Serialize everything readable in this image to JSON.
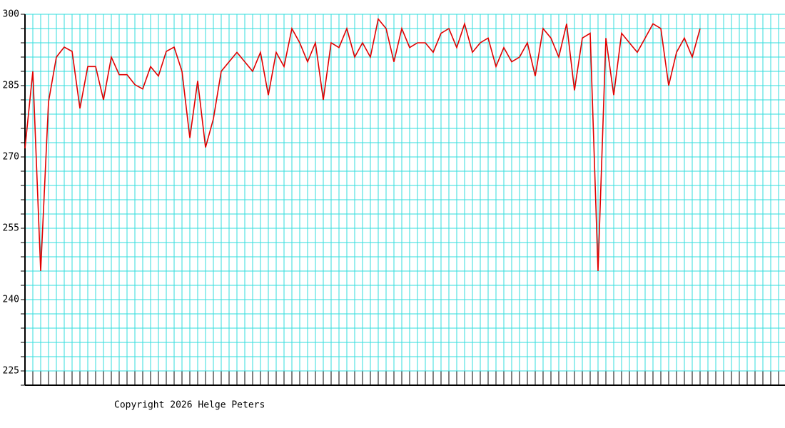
{
  "chart_data": {
    "type": "line",
    "footer": "Copyright 2026 Helge Peters",
    "categories": [
      null,
      null,
      null,
      null,
      null,
      null,
      null,
      null,
      null,
      null,
      null,
      null,
      null,
      null,
      null,
      null,
      null,
      null,
      null,
      null,
      null,
      null,
      null,
      null,
      null,
      null,
      null,
      null,
      null,
      null,
      null,
      null,
      null,
      null,
      null,
      null,
      null,
      null,
      null,
      null,
      null,
      null,
      null,
      null,
      null,
      null,
      null,
      null,
      null,
      null,
      null,
      null,
      null,
      null,
      null,
      null,
      null,
      null,
      null,
      null,
      null,
      null,
      null,
      null,
      null,
      null,
      null,
      null,
      null,
      null,
      null,
      null,
      null,
      null,
      null,
      null,
      null,
      null,
      null,
      null,
      null,
      null,
      null,
      null,
      null,
      null,
      null
    ],
    "series": [
      {
        "color": "#e00000",
        "values": [
          271.8,
          288,
          246,
          281.6,
          291,
          293.1,
          292.2,
          280.2,
          289,
          289,
          282,
          291,
          287.3,
          287.3,
          285.2,
          284.3,
          289,
          287,
          292.2,
          293.1,
          288,
          274,
          286,
          272,
          278,
          288,
          290,
          292,
          290,
          288,
          292,
          283,
          292,
          289,
          297,
          294,
          290,
          294,
          282,
          294,
          293,
          297,
          291,
          294,
          291,
          299,
          297,
          290,
          297,
          293,
          294,
          294,
          292,
          296,
          297,
          293,
          298,
          292,
          294,
          295,
          289,
          293,
          290,
          291,
          294,
          287,
          297,
          295,
          291,
          298,
          284,
          295,
          296,
          246,
          295,
          283,
          296,
          294,
          292,
          295,
          298,
          297,
          285,
          292,
          295,
          291,
          297
        ]
      }
    ],
    "ylim": [
      222,
      300
    ],
    "yticks": [
      225,
      240,
      255,
      270,
      285,
      300
    ],
    "ygrid": [
      222,
      225,
      228,
      231,
      234,
      237,
      240,
      243,
      246,
      249,
      252,
      255,
      258,
      261,
      264,
      267,
      270,
      273,
      276,
      279,
      282,
      285,
      288,
      291,
      294,
      297,
      300
    ],
    "grid": true,
    "grid_color": "#33dddd"
  }
}
